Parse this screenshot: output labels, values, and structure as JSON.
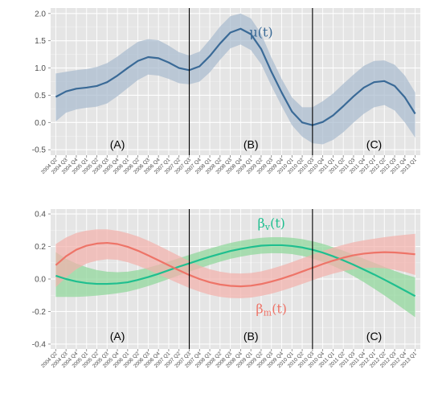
{
  "colors": {
    "panel": "#E5E5E5",
    "grid_major": "#FFFFFF",
    "grid_minor": "#F2F2F2",
    "divider": "#000000",
    "mu": "#3A6A97",
    "mu_band": "#A9BBCE",
    "beta_v": "#1FBF8F",
    "beta_v_band": "#8FD79A",
    "beta_m": "#EE7468",
    "beta_m_band": "#F2B2AC"
  },
  "chart_data": [
    {
      "type": "line",
      "x": [
        "2004 Q2",
        "2004 Q3",
        "2004 Q4",
        "2005 Q1",
        "2005 Q2",
        "2005 Q3",
        "2005 Q4",
        "2006 Q1",
        "2006 Q2",
        "2006 Q3",
        "2006 Q4",
        "2007 Q1",
        "2007 Q2",
        "2007 Q3",
        "2007 Q4",
        "2008 Q1",
        "2008 Q2",
        "2008 Q3",
        "2008 Q4",
        "2009 Q1",
        "2009 Q2",
        "2009 Q3",
        "2009 Q4",
        "2010 Q1",
        "2010 Q2",
        "2010 Q3",
        "2010 Q4",
        "2011 Q1",
        "2011 Q2",
        "2011 Q3",
        "2011 Q4",
        "2012 Q1",
        "2012 Q2",
        "2012 Q3",
        "2012 Q4",
        "2013 Q1"
      ],
      "ylim": [
        -0.6,
        2.1
      ],
      "yticks": [
        -0.5,
        0.0,
        0.5,
        1.0,
        1.5,
        2.0
      ],
      "ytick_labels": [
        "-0.5",
        "0.0",
        "0.5",
        "1.0",
        "1.5",
        "2.0"
      ],
      "dividers": [
        "2007 Q3",
        "2010 Q3"
      ],
      "regions": [
        {
          "label": "(A)",
          "x": "2005 Q4",
          "y": -0.4
        },
        {
          "label": "(B)",
          "x": "2009 Q1",
          "y": -0.4
        },
        {
          "label": "(C)",
          "x": "2012 Q1",
          "y": -0.4
        }
      ],
      "series": [
        {
          "name": "μ(t)",
          "name_base": "μ(t)",
          "name_sub": "",
          "label_pos": {
            "x": "2009 Q2",
            "y": 1.65
          },
          "color_key": "mu",
          "values": [
            0.47,
            0.57,
            0.62,
            0.64,
            0.67,
            0.74,
            0.86,
            1.0,
            1.13,
            1.2,
            1.18,
            1.1,
            1.0,
            0.96,
            1.03,
            1.22,
            1.45,
            1.65,
            1.72,
            1.62,
            1.35,
            0.93,
            0.55,
            0.2,
            0.0,
            -0.05,
            0.01,
            0.13,
            0.3,
            0.48,
            0.64,
            0.74,
            0.76,
            0.67,
            0.46,
            0.16
          ],
          "lower": [
            0.02,
            0.18,
            0.24,
            0.27,
            0.29,
            0.35,
            0.48,
            0.63,
            0.78,
            0.88,
            0.86,
            0.8,
            0.72,
            0.7,
            0.75,
            0.92,
            1.15,
            1.36,
            1.43,
            1.33,
            1.07,
            0.67,
            0.3,
            -0.05,
            -0.26,
            -0.38,
            -0.4,
            -0.32,
            -0.18,
            0.0,
            0.16,
            0.28,
            0.32,
            0.22,
            0.0,
            -0.28
          ],
          "upper": [
            0.9,
            0.93,
            0.96,
            0.98,
            1.02,
            1.09,
            1.21,
            1.35,
            1.48,
            1.53,
            1.51,
            1.41,
            1.29,
            1.23,
            1.3,
            1.52,
            1.76,
            1.95,
            2.0,
            1.91,
            1.63,
            1.19,
            0.8,
            0.46,
            0.28,
            0.28,
            0.39,
            0.53,
            0.71,
            0.88,
            1.04,
            1.13,
            1.14,
            1.06,
            0.86,
            0.55
          ]
        }
      ]
    },
    {
      "type": "line",
      "x": [
        "2004 Q2",
        "2004 Q3",
        "2004 Q4",
        "2005 Q1",
        "2005 Q2",
        "2005 Q3",
        "2005 Q4",
        "2006 Q1",
        "2006 Q2",
        "2006 Q3",
        "2006 Q4",
        "2007 Q1",
        "2007 Q2",
        "2007 Q3",
        "2007 Q4",
        "2008 Q1",
        "2008 Q2",
        "2008 Q3",
        "2008 Q4",
        "2009 Q1",
        "2009 Q2",
        "2009 Q3",
        "2009 Q4",
        "2010 Q1",
        "2010 Q2",
        "2010 Q3",
        "2010 Q4",
        "2011 Q1",
        "2011 Q2",
        "2011 Q3",
        "2011 Q4",
        "2012 Q1",
        "2012 Q2",
        "2012 Q3",
        "2012 Q4",
        "2013 Q1"
      ],
      "ylim": [
        -0.43,
        0.43
      ],
      "yticks": [
        -0.4,
        -0.2,
        0.0,
        0.2,
        0.4
      ],
      "ytick_labels": [
        "-0.4",
        "-0.2",
        "0.0",
        "0.2",
        "0.4"
      ],
      "dividers": [
        "2007 Q3",
        "2010 Q3"
      ],
      "regions": [
        {
          "label": "(A)",
          "x": "2005 Q4",
          "y": -0.35
        },
        {
          "label": "(B)",
          "x": "2009 Q1",
          "y": -0.35
        },
        {
          "label": "(C)",
          "x": "2012 Q1",
          "y": -0.35
        }
      ],
      "series": [
        {
          "name": "βv(t)",
          "name_base": "β",
          "name_sub": "v",
          "name_tail": "(t)",
          "label_pos": {
            "x": "2009 Q3",
            "y": 0.34
          },
          "color_key": "beta_v",
          "values": [
            0.02,
            0.0,
            -0.015,
            -0.025,
            -0.03,
            -0.03,
            -0.027,
            -0.02,
            -0.005,
            0.012,
            0.032,
            0.054,
            0.076,
            0.096,
            0.117,
            0.137,
            0.155,
            0.172,
            0.185,
            0.196,
            0.205,
            0.208,
            0.208,
            0.203,
            0.194,
            0.18,
            0.162,
            0.14,
            0.115,
            0.088,
            0.058,
            0.028,
            -0.004,
            -0.037,
            -0.071,
            -0.105
          ],
          "lower": [
            -0.11,
            -0.11,
            -0.11,
            -0.107,
            -0.102,
            -0.096,
            -0.088,
            -0.078,
            -0.062,
            -0.043,
            -0.022,
            0.0,
            0.023,
            0.045,
            0.066,
            0.087,
            0.106,
            0.124,
            0.137,
            0.148,
            0.156,
            0.159,
            0.158,
            0.153,
            0.142,
            0.126,
            0.105,
            0.08,
            0.051,
            0.018,
            -0.019,
            -0.059,
            -0.101,
            -0.145,
            -0.19,
            -0.235
          ],
          "upper": [
            0.165,
            0.125,
            0.095,
            0.072,
            0.055,
            0.045,
            0.042,
            0.045,
            0.055,
            0.07,
            0.088,
            0.108,
            0.128,
            0.148,
            0.168,
            0.187,
            0.205,
            0.222,
            0.235,
            0.245,
            0.253,
            0.257,
            0.257,
            0.253,
            0.245,
            0.232,
            0.216,
            0.196,
            0.174,
            0.15,
            0.125,
            0.1,
            0.075,
            0.05,
            0.028,
            0.01
          ]
        },
        {
          "name": "βm(t)",
          "name_base": "β",
          "name_sub": "m",
          "name_tail": "(t)",
          "label_pos": {
            "x": "2009 Q3",
            "y": -0.185
          },
          "color_key": "beta_m",
          "values": [
            0.085,
            0.14,
            0.18,
            0.205,
            0.218,
            0.222,
            0.215,
            0.198,
            0.174,
            0.145,
            0.115,
            0.084,
            0.054,
            0.025,
            0.0,
            -0.02,
            -0.034,
            -0.042,
            -0.045,
            -0.041,
            -0.031,
            -0.016,
            0.002,
            0.023,
            0.046,
            0.069,
            0.092,
            0.113,
            0.131,
            0.146,
            0.156,
            0.162,
            0.165,
            0.163,
            0.158,
            0.152
          ],
          "lower": [
            -0.05,
            0.01,
            0.06,
            0.095,
            0.113,
            0.122,
            0.118,
            0.103,
            0.082,
            0.056,
            0.028,
            0.0,
            -0.028,
            -0.055,
            -0.078,
            -0.097,
            -0.11,
            -0.117,
            -0.118,
            -0.114,
            -0.104,
            -0.09,
            -0.072,
            -0.052,
            -0.03,
            -0.008,
            0.014,
            0.033,
            0.049,
            0.061,
            0.068,
            0.07,
            0.066,
            0.057,
            0.043,
            0.025
          ],
          "upper": [
            0.215,
            0.255,
            0.283,
            0.298,
            0.305,
            0.305,
            0.297,
            0.282,
            0.262,
            0.236,
            0.206,
            0.174,
            0.142,
            0.11,
            0.082,
            0.06,
            0.045,
            0.036,
            0.034,
            0.037,
            0.047,
            0.063,
            0.082,
            0.104,
            0.127,
            0.15,
            0.172,
            0.193,
            0.21,
            0.226,
            0.238,
            0.248,
            0.257,
            0.265,
            0.272,
            0.278
          ]
        }
      ]
    }
  ]
}
